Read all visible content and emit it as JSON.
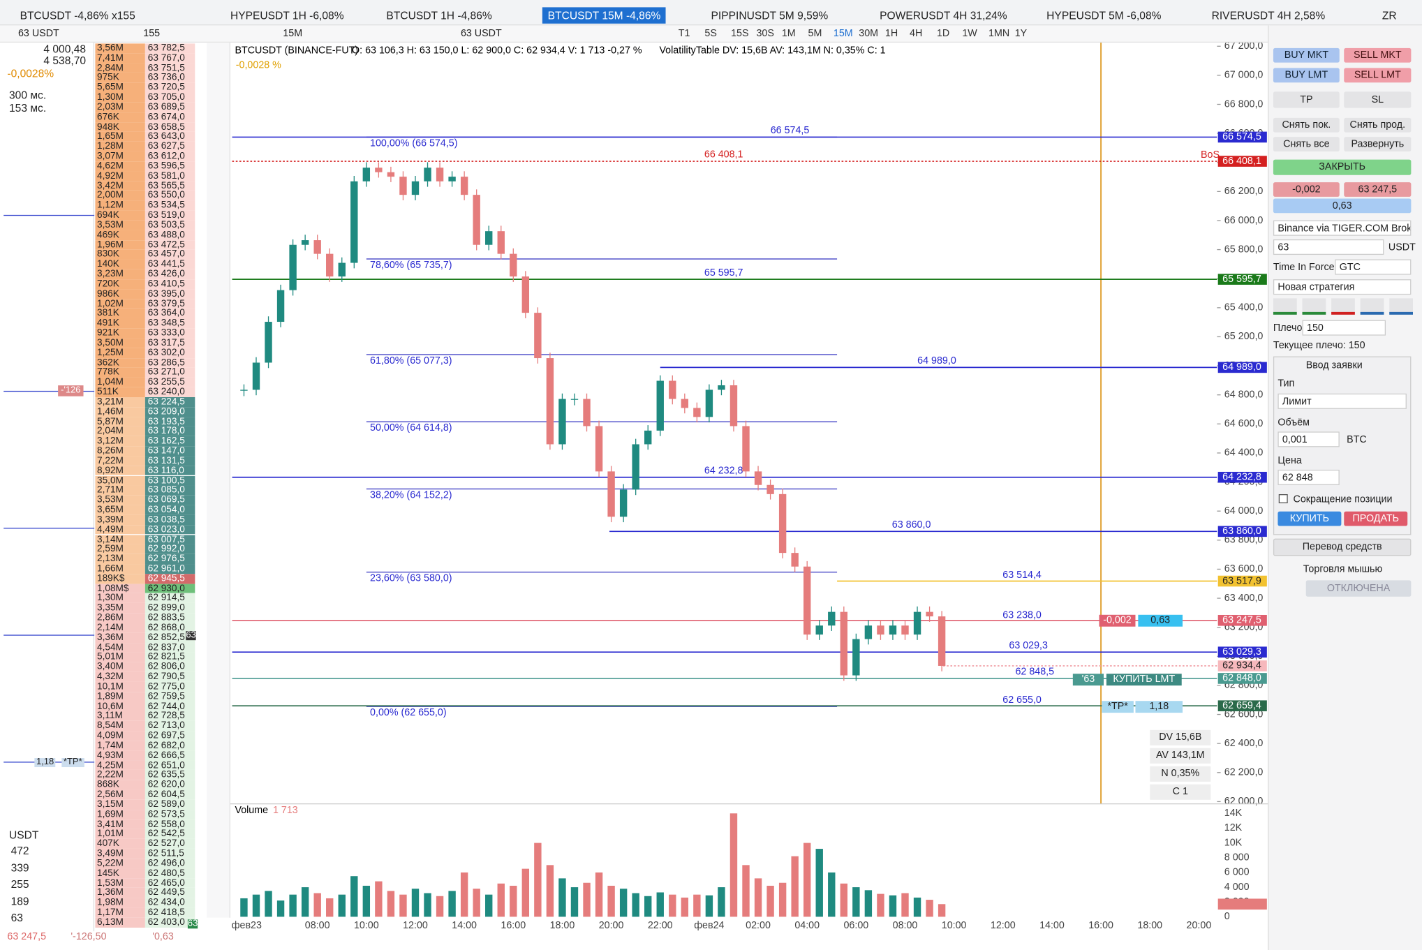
{
  "tabs": [
    "BTCUSDT -4,86% x155",
    "HYPEUSDT 1H -6,08%",
    "BTCUSDT 1H -4,86%",
    "BTCUSDT 15M -4,86%",
    "PIPPINUSDT 5M 9,59%",
    "POWERUSDT 4H 31,24%",
    "HYPEUSDT 5M -6,08%",
    "RIVERUSDT 4H 2,58%",
    "ZR"
  ],
  "toolbar": {
    "account": "63 USDT",
    "multiplier": "155",
    "symbol_qty": "63 USDT",
    "timeframe": "15M",
    "frames": [
      "T1",
      "5S",
      "15S",
      "30S",
      "1M",
      "5M",
      "15M",
      "30M",
      "1H",
      "4H",
      "1D",
      "1W",
      "1MN",
      "1Y"
    ]
  },
  "left": {
    "price1": "4 000,48",
    "price2": "4 538,70",
    "change": "-0,0028%",
    "latency1": "300 мс.",
    "latency2": "153 мс.",
    "markers": [
      "-'126",
      "1,18",
      "*TP*",
      "63",
      "63"
    ],
    "usdt": "USDT",
    "amounts": [
      "472",
      "339",
      "255",
      "189",
      "63"
    ],
    "footer": [
      "63 247,5",
      "'-126,50",
      "'0,63"
    ]
  },
  "orderbook": [
    [
      "3,56M",
      "63 782,5"
    ],
    [
      "7,41M",
      "63 767,0"
    ],
    [
      "2,84M",
      "63 751,5"
    ],
    [
      "975K",
      "63 736,0"
    ],
    [
      "5,65M",
      "63 720,5"
    ],
    [
      "1,30M",
      "63 705,0"
    ],
    [
      "2,03M",
      "63 689,5"
    ],
    [
      "676K",
      "63 674,0"
    ],
    [
      "948K",
      "63 658,5"
    ],
    [
      "1,65M",
      "63 643,0"
    ],
    [
      "1,28M",
      "63 627,5"
    ],
    [
      "3,07M",
      "63 612,0"
    ],
    [
      "4,62M",
      "63 596,5"
    ],
    [
      "4,92M",
      "63 581,0"
    ],
    [
      "3,42M",
      "63 565,5"
    ],
    [
      "2,00M",
      "63 550,0"
    ],
    [
      "1,12M",
      "63 534,5"
    ],
    [
      "694K",
      "63 519,0"
    ],
    [
      "3,53M",
      "63 503,5"
    ],
    [
      "469K",
      "63 488,0"
    ],
    [
      "1,96M",
      "63 472,5"
    ],
    [
      "830K",
      "63 457,0"
    ],
    [
      "140K",
      "63 441,5"
    ],
    [
      "3,23M",
      "63 426,0"
    ],
    [
      "720K",
      "63 410,5"
    ],
    [
      "986K",
      "63 395,0"
    ],
    [
      "1,02M",
      "63 379,5"
    ],
    [
      "381K",
      "63 364,0"
    ],
    [
      "491K",
      "63 348,5"
    ],
    [
      "921K",
      "63 333,0"
    ],
    [
      "3,50M",
      "63 317,5"
    ],
    [
      "1,25M",
      "63 302,0"
    ],
    [
      "362K",
      "63 286,5"
    ],
    [
      "778K",
      "63 271,0"
    ],
    [
      "1,04M",
      "63 255,5"
    ],
    [
      "511K",
      "63 240,0"
    ],
    [
      "3,21M",
      "63 224,5"
    ],
    [
      "1,46M",
      "63 209,0"
    ],
    [
      "5,87M",
      "63 193,5"
    ],
    [
      "2,04M",
      "63 178,0"
    ],
    [
      "3,12M",
      "63 162,5"
    ],
    [
      "8,26M",
      "63 147,0"
    ],
    [
      "7,22M",
      "63 131,5"
    ],
    [
      "8,92M",
      "63 116,0"
    ],
    [
      "35,0M",
      "63 100,5"
    ],
    [
      "2,71M",
      "63 085,0"
    ],
    [
      "3,53M",
      "63 069,5"
    ],
    [
      "3,65M",
      "63 054,0"
    ],
    [
      "3,39M",
      "63 038,5"
    ],
    [
      "4,49M",
      "63 023,0"
    ],
    [
      "3,14M",
      "63 007,5"
    ],
    [
      "2,59M",
      "62 992,0"
    ],
    [
      "2,13M",
      "62 976,5"
    ],
    [
      "1,66M",
      "62 961,0"
    ],
    [
      "189K$",
      "62 945,5"
    ],
    [
      "1,08M$",
      "62 930,0"
    ],
    [
      "1,30M",
      "62 914,5"
    ],
    [
      "3,35M",
      "62 899,0"
    ],
    [
      "2,86M",
      "62 883,5"
    ],
    [
      "2,14M",
      "62 868,0"
    ],
    [
      "3,36M",
      "62 852,5"
    ],
    [
      "4,54M",
      "62 837,0"
    ],
    [
      "5,01M",
      "62 821,5"
    ],
    [
      "3,40M",
      "62 806,0"
    ],
    [
      "4,32M",
      "62 790,5"
    ],
    [
      "10,1M",
      "62 775,0"
    ],
    [
      "1,89M",
      "62 759,5"
    ],
    [
      "10,6M",
      "62 744,0"
    ],
    [
      "3,11M",
      "62 728,5"
    ],
    [
      "8,54M",
      "62 713,0"
    ],
    [
      "4,09M",
      "62 697,5"
    ],
    [
      "1,74M",
      "62 682,0"
    ],
    [
      "4,93M",
      "62 666,5"
    ],
    [
      "4,25M",
      "62 651,0"
    ],
    [
      "2,22M",
      "62 635,5"
    ],
    [
      "868K",
      "62 620,0"
    ],
    [
      "2,56M",
      "62 604,5"
    ],
    [
      "3,15M",
      "62 589,0"
    ],
    [
      "1,69M",
      "62 573,5"
    ],
    [
      "3,41M",
      "62 558,0"
    ],
    [
      "1,01M",
      "62 542,5"
    ],
    [
      "407K",
      "62 527,0"
    ],
    [
      "3,49M",
      "62 511,5"
    ],
    [
      "5,22M",
      "62 496,0"
    ],
    [
      "145K",
      "62 480,5"
    ],
    [
      "1,53M",
      "62 465,0"
    ],
    [
      "1,36M",
      "62 449,5"
    ],
    [
      "1,98M",
      "62 434,0"
    ],
    [
      "1,17M",
      "62 418,5"
    ],
    [
      "6,13M",
      "62 403,0"
    ]
  ],
  "chart_data": [
    {
      "type": "candlestick",
      "title": "BTCUSDT (BINANCE-FUT)",
      "ohlc": "O: 63 106,3 H: 63 150,0 L: 62 900,0 C: 62 934,4 V: 1 713 -0,27 %",
      "indicator": "VolatilityTable DV: 15,6B AV: 143,1M N: 0,35% C: 1",
      "change": "-0,0028 %",
      "bos": "BoS",
      "x": [
        "05:00",
        "05:30",
        "06:00",
        "06:30",
        "07:00",
        "07:30",
        "08:00",
        "08:30",
        "09:00",
        "09:30",
        "10:00",
        "10:30",
        "11:00",
        "11:30",
        "12:00",
        "12:30",
        "13:00",
        "13:30",
        "14:00",
        "14:30",
        "15:00",
        "15:30",
        "16:00",
        "16:30",
        "17:00",
        "17:30",
        "18:00",
        "18:30",
        "19:00",
        "19:30",
        "20:00",
        "20:30",
        "21:00",
        "21:30",
        "22:00",
        "22:30",
        "23:00",
        "23:30",
        "00:00",
        "00:30",
        "01:00",
        "01:30",
        "02:00",
        "02:30",
        "03:00",
        "03:30",
        "04:00",
        "04:30",
        "05:00",
        "05:30",
        "06:00",
        "06:30",
        "07:00",
        "07:30",
        "08:00",
        "08:30",
        "09:00",
        "09:30"
      ],
      "values": [
        64835,
        65022,
        65303,
        65521,
        65833,
        65865,
        65771,
        65615,
        65709,
        66270,
        66364,
        66333,
        66302,
        66177,
        66270,
        66364,
        66270,
        66302,
        66177,
        65833,
        65927,
        65771,
        65615,
        65365,
        65053,
        64460,
        64772,
        64772,
        64585,
        64273,
        63961,
        64148,
        64460,
        64554,
        64897,
        64772,
        64710,
        64648,
        64835,
        64866,
        64585,
        64273,
        64180,
        64117,
        63712,
        63618,
        63150,
        63212,
        63306,
        62869,
        63119,
        63212,
        63150,
        63212,
        63150,
        63306,
        63275,
        62934.4
      ],
      "colors": {
        "up": "#1f8a80",
        "down": "#e57c7c"
      },
      "ylim": [
        62000,
        67200
      ],
      "yticks": [
        {
          "value": 67200,
          "label": "67 200,0"
        },
        {
          "value": 67000,
          "label": "67 000,0"
        },
        {
          "value": 66800,
          "label": "66 800,0"
        },
        {
          "value": 66600,
          "label": "66 600,0"
        },
        {
          "value": 66400,
          "label": "66 400,0"
        },
        {
          "value": 66200,
          "label": "66 200,0"
        },
        {
          "value": 66000,
          "label": "66 000,0"
        },
        {
          "value": 65800,
          "label": "65 800,0"
        },
        {
          "value": 65600,
          "label": "65 600,0"
        },
        {
          "value": 65400,
          "label": "65 400,0"
        },
        {
          "value": 65200,
          "label": "65 200,0"
        },
        {
          "value": 65000,
          "label": "65 000,0"
        },
        {
          "value": 64800,
          "label": "64 800,0"
        },
        {
          "value": 64600,
          "label": "64 600,0"
        },
        {
          "value": 64400,
          "label": "64 400,0"
        },
        {
          "value": 64200,
          "label": "64 200,0"
        },
        {
          "value": 64000,
          "label": "64 000,0"
        },
        {
          "value": 63800,
          "label": "63 800,0"
        },
        {
          "value": 63600,
          "label": "63 600,0"
        },
        {
          "value": 63400,
          "label": "63 400,0"
        },
        {
          "value": 63200,
          "label": "63 200,0"
        },
        {
          "value": 63000,
          "label": "63 000,0"
        },
        {
          "value": 62800,
          "label": "62 800,0"
        },
        {
          "value": 62600,
          "label": "62 600,0"
        },
        {
          "value": 62400,
          "label": "62 400,0"
        },
        {
          "value": 62200,
          "label": "62 200,0"
        },
        {
          "value": 62000,
          "label": "62 000,0"
        }
      ],
      "time_labels": [
        "фев23",
        "08:00",
        "10:00",
        "12:00",
        "14:00",
        "16:00",
        "18:00",
        "20:00",
        "22:00",
        "фев24",
        "02:00",
        "04:00",
        "06:00",
        "08:00",
        "10:00",
        "12:00",
        "14:00",
        "16:00",
        "18:00",
        "20:00"
      ],
      "levels": [
        {
          "badge": {
            "value": 66574.5,
            "label": "66 574,5"
          },
          "line_label": {
            "value": 66574.5,
            "label": "66 574,5"
          },
          "color": "#2a2ad0"
        },
        {
          "badge": {
            "value": 66408.1,
            "label": "66 408,1"
          },
          "line_label": {
            "value": 66408.1,
            "label": "66 408,1"
          },
          "color": "#d42020"
        },
        {
          "badge": {
            "value": 65595.7,
            "label": "65 595,7"
          },
          "line_label": {
            "value": 65595.7,
            "label": "65 595,7"
          },
          "color": "#1a7a1a"
        },
        {
          "badge": {
            "value": 64989.0,
            "label": "64 989,0"
          },
          "line_label": {
            "value": 64989.0,
            "label": "64 989,0"
          },
          "color": "#2a2ad0"
        },
        {
          "badge": {
            "value": 64232.8,
            "label": "64 232,8"
          },
          "line_label": {
            "value": 64232.8,
            "label": "64 232,8"
          },
          "color": "#2a2ad0"
        },
        {
          "badge": {
            "value": 63860.0,
            "label": "63 860,0"
          },
          "line_label": {
            "value": 63860.0,
            "label": "63 860,0"
          },
          "color": "#2a2ad0"
        },
        {
          "badge": {
            "value": 63517.9,
            "label": "63 517,9"
          },
          "line_label": {
            "value": 63514.4,
            "label": "63 514,4"
          },
          "color": "#f2c230"
        },
        {
          "badge": {
            "value": 63247.5,
            "label": "63 247,5"
          },
          "line_label": {
            "value": 63238.0,
            "label": "63 238,0"
          },
          "color": "#e06070"
        },
        {
          "badge": {
            "value": 63029.3,
            "label": "63 029,3"
          },
          "line_label": {
            "value": 63029.3,
            "label": "63 029,3"
          },
          "color": "#2a2ad0"
        },
        {
          "badge": {
            "value": 62934.4,
            "label": "62 934,4"
          },
          "color": "#f09aa0"
        },
        {
          "badge": {
            "value": 62848.0,
            "label": "62 848,0"
          },
          "line_label": {
            "value": 62848.5,
            "label": "62 848,5"
          },
          "color": "#4a9a90"
        },
        {
          "badge": {
            "value": 62659.4,
            "label": "62 659,4"
          },
          "line_label": {
            "value": 62655.0,
            "label": "62 655,0"
          },
          "color": "#2a6a4a"
        }
      ],
      "fib": [
        {
          "value": 66574.5,
          "label": "100,00% (66 574,5)"
        },
        {
          "value": 65735.7,
          "label": "78,60% (65 735,7)"
        },
        {
          "value": 65077.3,
          "label": "61,80% (65 077,3)"
        },
        {
          "value": 64614.8,
          "label": "50,00% (64 614,8)"
        },
        {
          "value": 64152.2,
          "label": "38,20% (64 152,2)"
        },
        {
          "value": 63580.0,
          "label": "23,60% (63 580,0)"
        },
        {
          "value": 62655.0,
          "label": "0,00% (62 655,0)"
        }
      ],
      "stats": [
        "DV 15,6B",
        "AV 143,1M",
        "N 0,35%",
        "C 1"
      ],
      "chips": [
        "-0,002",
        "0,63",
        "'63",
        "КУПИТЬ LMT",
        "*TP*",
        "1,18"
      ]
    },
    {
      "type": "bar",
      "title": "Volume",
      "value_labels": [
        "1 713"
      ],
      "values": [
        2500,
        3000,
        3500,
        2200,
        3000,
        4000,
        3200,
        2500,
        3000,
        5500,
        4200,
        4800,
        3500,
        3000,
        3800,
        3200,
        2800,
        3500,
        6000,
        3800,
        3000,
        4500,
        4200,
        6500,
        10000,
        7000,
        5200,
        4000,
        4600,
        6000,
        4200,
        3800,
        3200,
        2800,
        3300,
        3000,
        2600,
        3000,
        2900,
        4000,
        14000,
        7000,
        5200,
        4200,
        4600,
        8200,
        10000,
        9200,
        6000,
        4500,
        4000,
        3600,
        3100,
        2900,
        3200,
        2600,
        2300,
        1713
      ],
      "ylim": [
        0,
        14000
      ],
      "yticks": [
        {
          "value": 14000,
          "label": "14K"
        },
        {
          "value": 12000,
          "label": "12K"
        },
        {
          "value": 10000,
          "label": "10K"
        },
        {
          "value": 8000,
          "label": "8 000"
        },
        {
          "value": 6000,
          "label": "6 000"
        },
        {
          "value": 4000,
          "label": "4 000"
        },
        {
          "value": 2000,
          "label": "2 000"
        },
        0
      ]
    }
  ],
  "panel": {
    "buy_mkt": "BUY MKT",
    "sell_mkt": "SELL MKT",
    "buy_lmt": "BUY LMT",
    "sell_lmt": "SELL LMT",
    "tp": "TP",
    "sl": "SL",
    "cancel_long": "Снять пок.",
    "cancel_short": "Снять прод.",
    "cancel_all": "Снять все",
    "reverse": "Развернуть",
    "close": "ЗАКРЫТЬ",
    "pos_qty": "-0,002",
    "pos_price": "63 247,5",
    "pos_pnl": "0,63",
    "broker": "Binance via TIGER.COM Brok",
    "amount": "63",
    "currency": "USDT",
    "tif_label": "Time In Force",
    "tif": "GTC",
    "strategy": "Новая стратегия",
    "leverage_label": "Плечо",
    "leverage": "150",
    "leverage_current": "Текущее плечо: 150",
    "order_title": "Ввод заявки",
    "type_label": "Тип",
    "type": "Лимит",
    "volume_label": "Объём",
    "volume": "0,001",
    "volume_unit": "BTC",
    "price_label": "Цена",
    "price": "62 848",
    "reduce": "Сокращение позиции",
    "buy": "КУПИТЬ",
    "sell": "ПРОДАТЬ",
    "transfer": "Перевод средств",
    "mouse_label": "Торговля мышью",
    "mouse_state": "ОТКЛЮЧЕНА"
  }
}
